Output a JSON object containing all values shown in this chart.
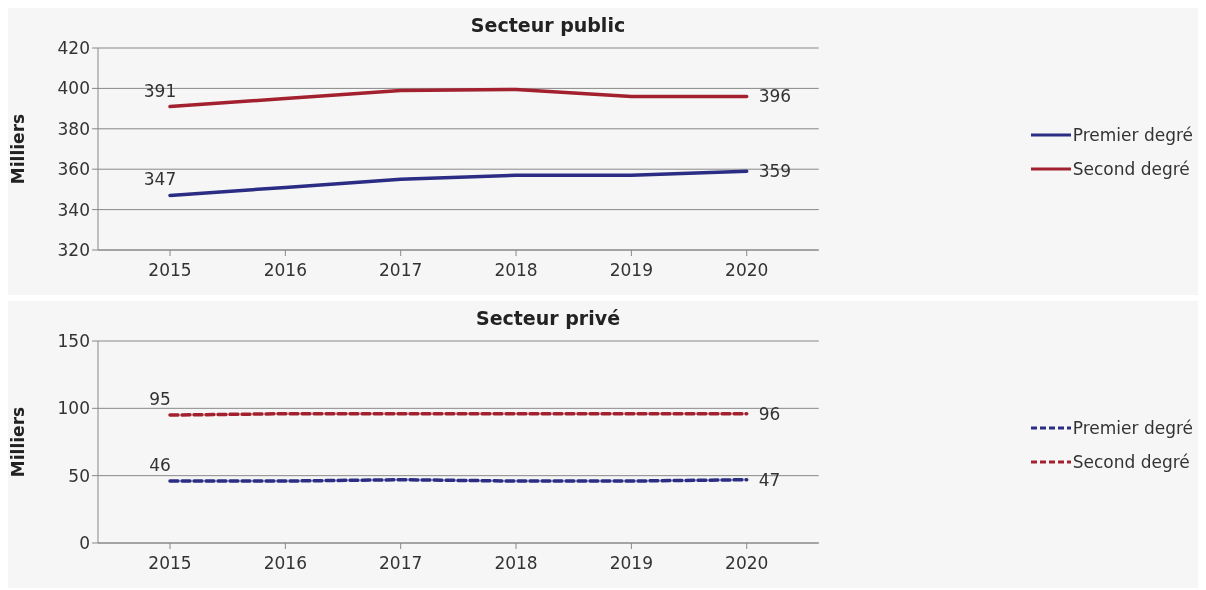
{
  "chart_data": [
    {
      "type": "line",
      "title": "Secteur public",
      "ylabel": "Milliers",
      "categories": [
        "2015",
        "2016",
        "2017",
        "2018",
        "2019",
        "2020"
      ],
      "ylim": [
        320,
        420
      ],
      "yticks": [
        320,
        340,
        360,
        380,
        400,
        420
      ],
      "grid": "y",
      "legend": "right",
      "line_style": "solid",
      "marker": "none",
      "series": [
        {
          "name": "Premier degré",
          "color": "#2b2d84",
          "values": [
            347,
            351,
            355,
            357,
            357,
            359
          ],
          "value_labels": [
            "347",
            null,
            null,
            null,
            null,
            "359"
          ]
        },
        {
          "name": "Second degré",
          "color": "#a3202f",
          "values": [
            391,
            395,
            399,
            399.5,
            396,
            396
          ],
          "value_labels": [
            "391",
            null,
            null,
            null,
            null,
            "396"
          ]
        }
      ]
    },
    {
      "type": "line",
      "title": "Secteur privé",
      "ylabel": "Milliers",
      "categories": [
        "2015",
        "2016",
        "2017",
        "2018",
        "2019",
        "2020"
      ],
      "ylim": [
        0,
        150
      ],
      "yticks": [
        0,
        50,
        100,
        150
      ],
      "grid": "y",
      "legend": "right",
      "line_style": "dashed",
      "marker": "none",
      "series": [
        {
          "name": "Premier degré",
          "color": "#2b2d84",
          "values": [
            46,
            46,
            47,
            46,
            46,
            47
          ],
          "value_labels": [
            "46",
            null,
            null,
            null,
            null,
            "47"
          ]
        },
        {
          "name": "Second degré",
          "color": "#a3202f",
          "values": [
            95,
            96,
            96,
            96,
            96,
            96
          ],
          "value_labels": [
            "95",
            null,
            null,
            null,
            null,
            "96"
          ]
        }
      ]
    }
  ]
}
